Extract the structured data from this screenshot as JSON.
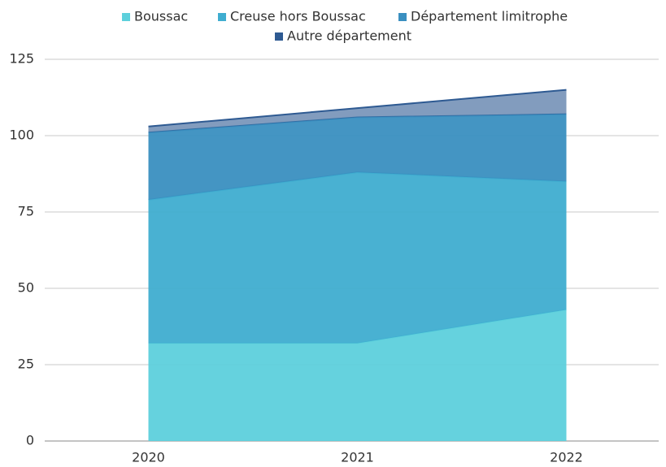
{
  "chart_data": {
    "type": "stacked_area",
    "categories": [
      "2020",
      "2021",
      "2022"
    ],
    "series": [
      {
        "name": "Boussac",
        "color": "#5dd0dc",
        "values": [
          32,
          32,
          43
        ]
      },
      {
        "name": "Creuse hors Boussac",
        "color": "#3fadd0",
        "values": [
          47,
          56,
          42
        ]
      },
      {
        "name": "Département limitrophe",
        "color": "#3a8fc0",
        "values": [
          22,
          18,
          22
        ]
      },
      {
        "name": "Autre département",
        "color": "#2e5a92",
        "values": [
          2,
          3,
          8
        ]
      }
    ],
    "ylim": [
      0,
      125
    ],
    "yticks": [
      0,
      25,
      50,
      75,
      100,
      125
    ],
    "grid": true,
    "legend": "top"
  }
}
